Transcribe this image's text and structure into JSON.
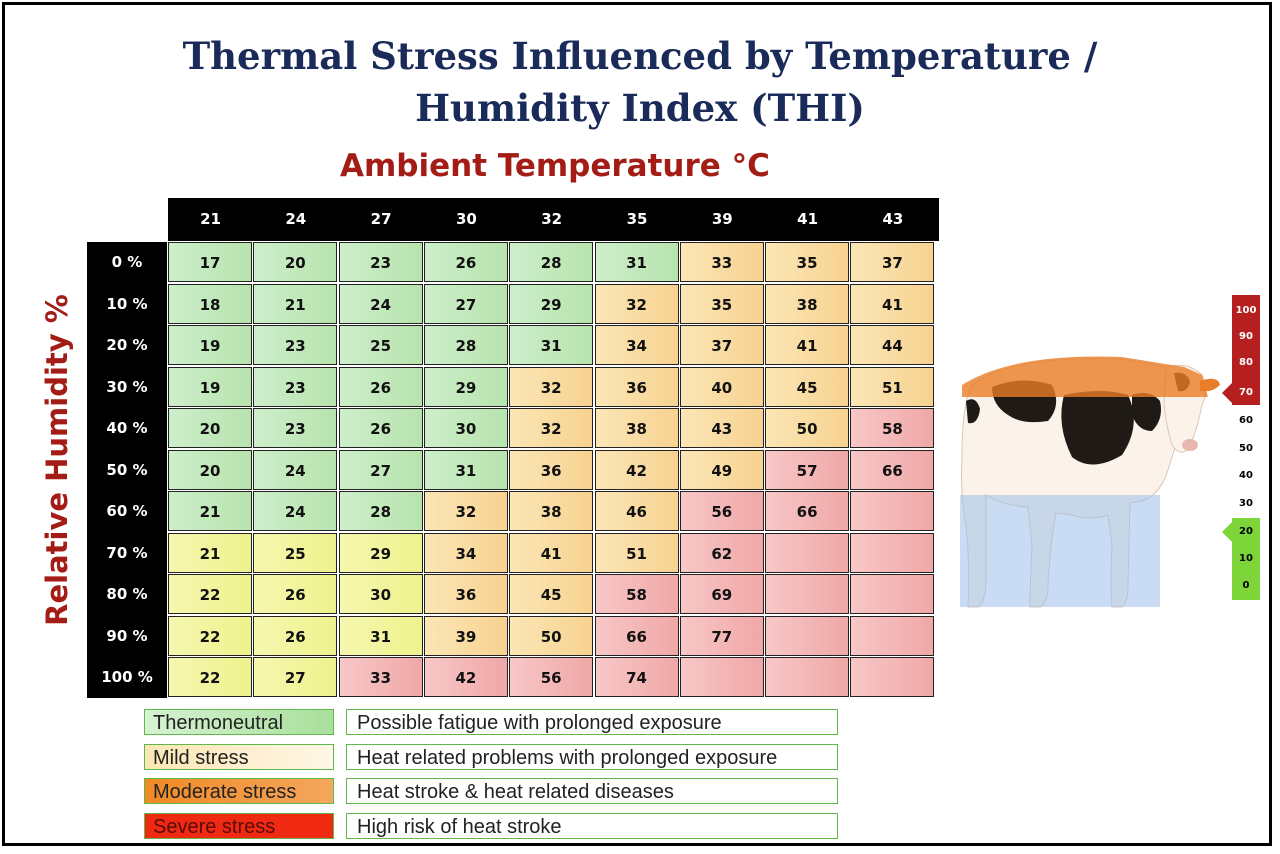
{
  "title_line1": "Thermal Stress Influenced by Temperature /",
  "title_line2": "Humidity Index (THI)",
  "xlabel": "Ambient Temperature °C",
  "ylabel": "Relative Humidity %",
  "chart_data": {
    "type": "table",
    "title": "Thermal Stress Influenced by Temperature / Humidity Index (THI)",
    "xlabel": "Ambient Temperature °C",
    "ylabel": "Relative Humidity %",
    "columns": [
      "21",
      "24",
      "27",
      "30",
      "32",
      "35",
      "39",
      "41",
      "43"
    ],
    "rows": [
      "0 %",
      "10 %",
      "20 %",
      "30 %",
      "40 %",
      "50 %",
      "60 %",
      "70 %",
      "80 %",
      "90 %",
      "100 %"
    ],
    "values": [
      [
        "17",
        "20",
        "23",
        "26",
        "28",
        "31",
        "33",
        "35",
        "37"
      ],
      [
        "18",
        "21",
        "24",
        "27",
        "29",
        "32",
        "35",
        "38",
        "41"
      ],
      [
        "19",
        "23",
        "25",
        "28",
        "31",
        "34",
        "37",
        "41",
        "44"
      ],
      [
        "19",
        "23",
        "26",
        "29",
        "32",
        "36",
        "40",
        "45",
        "51"
      ],
      [
        "20",
        "23",
        "26",
        "30",
        "32",
        "38",
        "43",
        "50",
        "58"
      ],
      [
        "20",
        "24",
        "27",
        "31",
        "36",
        "42",
        "49",
        "57",
        "66"
      ],
      [
        "21",
        "24",
        "28",
        "32",
        "38",
        "46",
        "56",
        "66",
        ""
      ],
      [
        "21",
        "25",
        "29",
        "34",
        "41",
        "51",
        "62",
        "",
        ""
      ],
      [
        "22",
        "26",
        "30",
        "36",
        "45",
        "58",
        "69",
        "",
        ""
      ],
      [
        "22",
        "26",
        "31",
        "39",
        "50",
        "66",
        "77",
        "",
        ""
      ],
      [
        "22",
        "27",
        "33",
        "42",
        "56",
        "74",
        "",
        "",
        ""
      ]
    ],
    "categories": [
      [
        "thermo",
        "thermo",
        "thermo",
        "thermo",
        "thermo",
        "thermo",
        "mild",
        "mild",
        "mild"
      ],
      [
        "thermo",
        "thermo",
        "thermo",
        "thermo",
        "thermo",
        "mild",
        "mild",
        "mild",
        "mild"
      ],
      [
        "thermo",
        "thermo",
        "thermo",
        "thermo",
        "thermo",
        "mild",
        "mild",
        "mild",
        "mild"
      ],
      [
        "thermo",
        "thermo",
        "thermo",
        "thermo",
        "mild",
        "mild",
        "mild",
        "mild",
        "mild"
      ],
      [
        "thermo",
        "thermo",
        "thermo",
        "thermo",
        "mild",
        "mild",
        "mild",
        "mild",
        "severe"
      ],
      [
        "thermo",
        "thermo",
        "thermo",
        "thermo",
        "mild",
        "mild",
        "mild",
        "severe",
        "severe"
      ],
      [
        "thermo",
        "thermo",
        "thermo",
        "mild",
        "mild",
        "mild",
        "severe",
        "severe",
        "severe"
      ],
      [
        "yellow",
        "yellow",
        "yellow",
        "mild",
        "mild",
        "mild",
        "severe",
        "severe",
        "severe"
      ],
      [
        "yellow",
        "yellow",
        "yellow",
        "mild",
        "mild",
        "severe",
        "severe",
        "severe",
        "severe"
      ],
      [
        "yellow",
        "yellow",
        "yellow",
        "mild",
        "mild",
        "severe",
        "severe",
        "severe",
        "severe"
      ],
      [
        "yellow",
        "yellow",
        "severe",
        "severe",
        "severe",
        "severe",
        "severe",
        "severe",
        "severe"
      ]
    ],
    "legend": [
      {
        "label": "Thermoneutral",
        "description": "Possible fatigue with prolonged exposure",
        "color": "#b7e3ad"
      },
      {
        "label": "Mild stress",
        "description": "Heat related problems with prolonged exposure",
        "color": "#fbe6b6"
      },
      {
        "label": "Moderate stress",
        "description": "Heat stroke & heat related diseases",
        "color": "#f08a24"
      },
      {
        "label": "Severe stress",
        "description": "High risk of heat stroke",
        "color": "#f02a12"
      }
    ]
  },
  "scale": {
    "ticks": [
      "100",
      "90",
      "80",
      "70",
      "60",
      "50",
      "40",
      "30",
      "20",
      "10",
      "0"
    ],
    "red_color": "#b51f1f",
    "green_color": "#7dd53a"
  }
}
